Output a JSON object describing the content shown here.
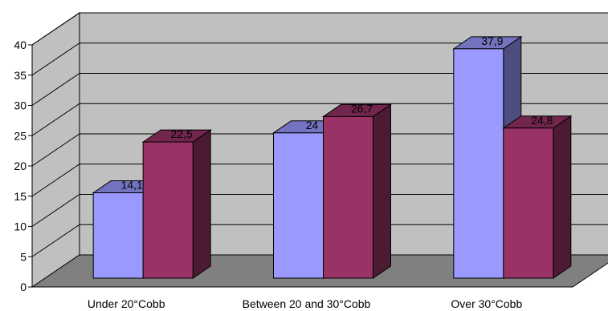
{
  "chart_data": {
    "type": "bar",
    "style": "3d-clustered-column",
    "categories": [
      "Under 20°Cobb",
      "Between 20 and 30°Cobb",
      "Over 30°Cobb"
    ],
    "series": [
      {
        "values": [
          14.1,
          24,
          37.9
        ],
        "labels": [
          "14,1",
          "24",
          "37,9"
        ],
        "color": "#9999FF"
      },
      {
        "values": [
          22.5,
          26.7,
          24.8
        ],
        "labels": [
          "22,5",
          "26,7",
          "24,8"
        ],
        "color": "#993366"
      }
    ],
    "yticks": [
      "0",
      "5",
      "10",
      "15",
      "20",
      "25",
      "30",
      "35",
      "40"
    ],
    "ylim": [
      0,
      40
    ],
    "title": "",
    "xlabel": "",
    "ylabel": "",
    "grid": true,
    "legend": "none",
    "wall_color": "#C0C0C0",
    "floor_color": "#808080"
  }
}
